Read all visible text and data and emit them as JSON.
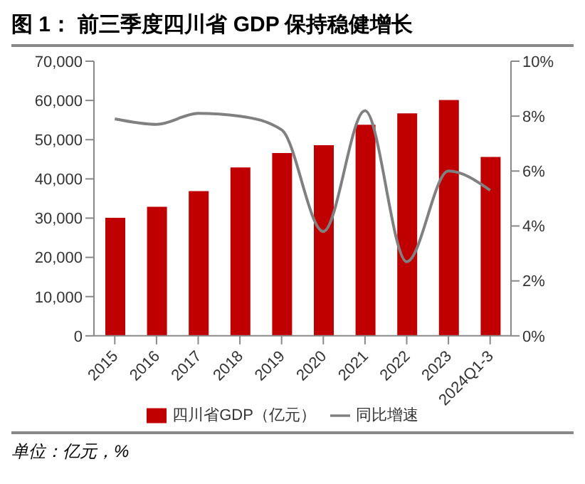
{
  "chart_data": {
    "type": "bar",
    "title": "图 1： 前三季度四川省 GDP 保持稳健增长",
    "categories": [
      "2015",
      "2016",
      "2017",
      "2018",
      "2019",
      "2020",
      "2021",
      "2022",
      "2023",
      "2024Q1-3"
    ],
    "series": [
      {
        "name": "四川省GDP（亿元）",
        "color": "#c00000",
        "values": [
          30100,
          32900,
          36900,
          42900,
          46600,
          48600,
          53800,
          56700,
          60100,
          45600
        ]
      },
      {
        "name": "同比增速",
        "type": "line",
        "axis": "y2",
        "color": "#808080",
        "values": [
          7.9,
          7.7,
          8.1,
          8.0,
          7.5,
          3.8,
          8.2,
          2.7,
          6.0,
          5.3
        ]
      }
    ],
    "ylim": [
      0,
      70000
    ],
    "yticks": [
      {
        "value": 0,
        "label": "0"
      },
      {
        "value": 10000,
        "label": "10,000"
      },
      {
        "value": 20000,
        "label": "20,000"
      },
      {
        "value": 30000,
        "label": "30,000"
      },
      {
        "value": 40000,
        "label": "40,000"
      },
      {
        "value": 50000,
        "label": "50,000"
      },
      {
        "value": 60000,
        "label": "60,000"
      },
      {
        "value": 70000,
        "label": "70,000"
      }
    ],
    "y2lim": [
      0,
      10
    ],
    "y2ticks": [
      {
        "value": 0,
        "label": "0%"
      },
      {
        "value": 2,
        "label": "2%"
      },
      {
        "value": 4,
        "label": "4%"
      },
      {
        "value": 6,
        "label": "6%"
      },
      {
        "value": 8,
        "label": "8%"
      },
      {
        "value": 10,
        "label": "10%"
      }
    ],
    "grid": false,
    "legend": "bottom",
    "marker": "none",
    "line_style": "solid",
    "annotations": [
      "单位：亿元，%"
    ]
  }
}
